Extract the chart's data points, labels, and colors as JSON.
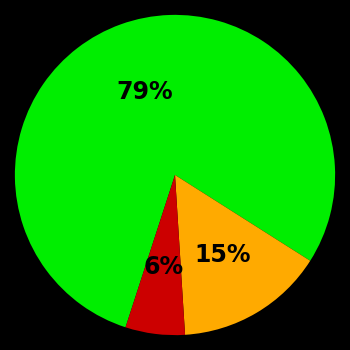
{
  "slices": [
    79,
    15,
    6
  ],
  "colors": [
    "#00ee00",
    "#ffaa00",
    "#cc0000"
  ],
  "labels": [
    "79%",
    "15%",
    "6%"
  ],
  "background_color": "#000000",
  "text_color": "#000000",
  "startangle": 252,
  "label_fontsize": 17,
  "label_fontweight": "bold",
  "label_radii": [
    0.55,
    0.58,
    0.58
  ]
}
